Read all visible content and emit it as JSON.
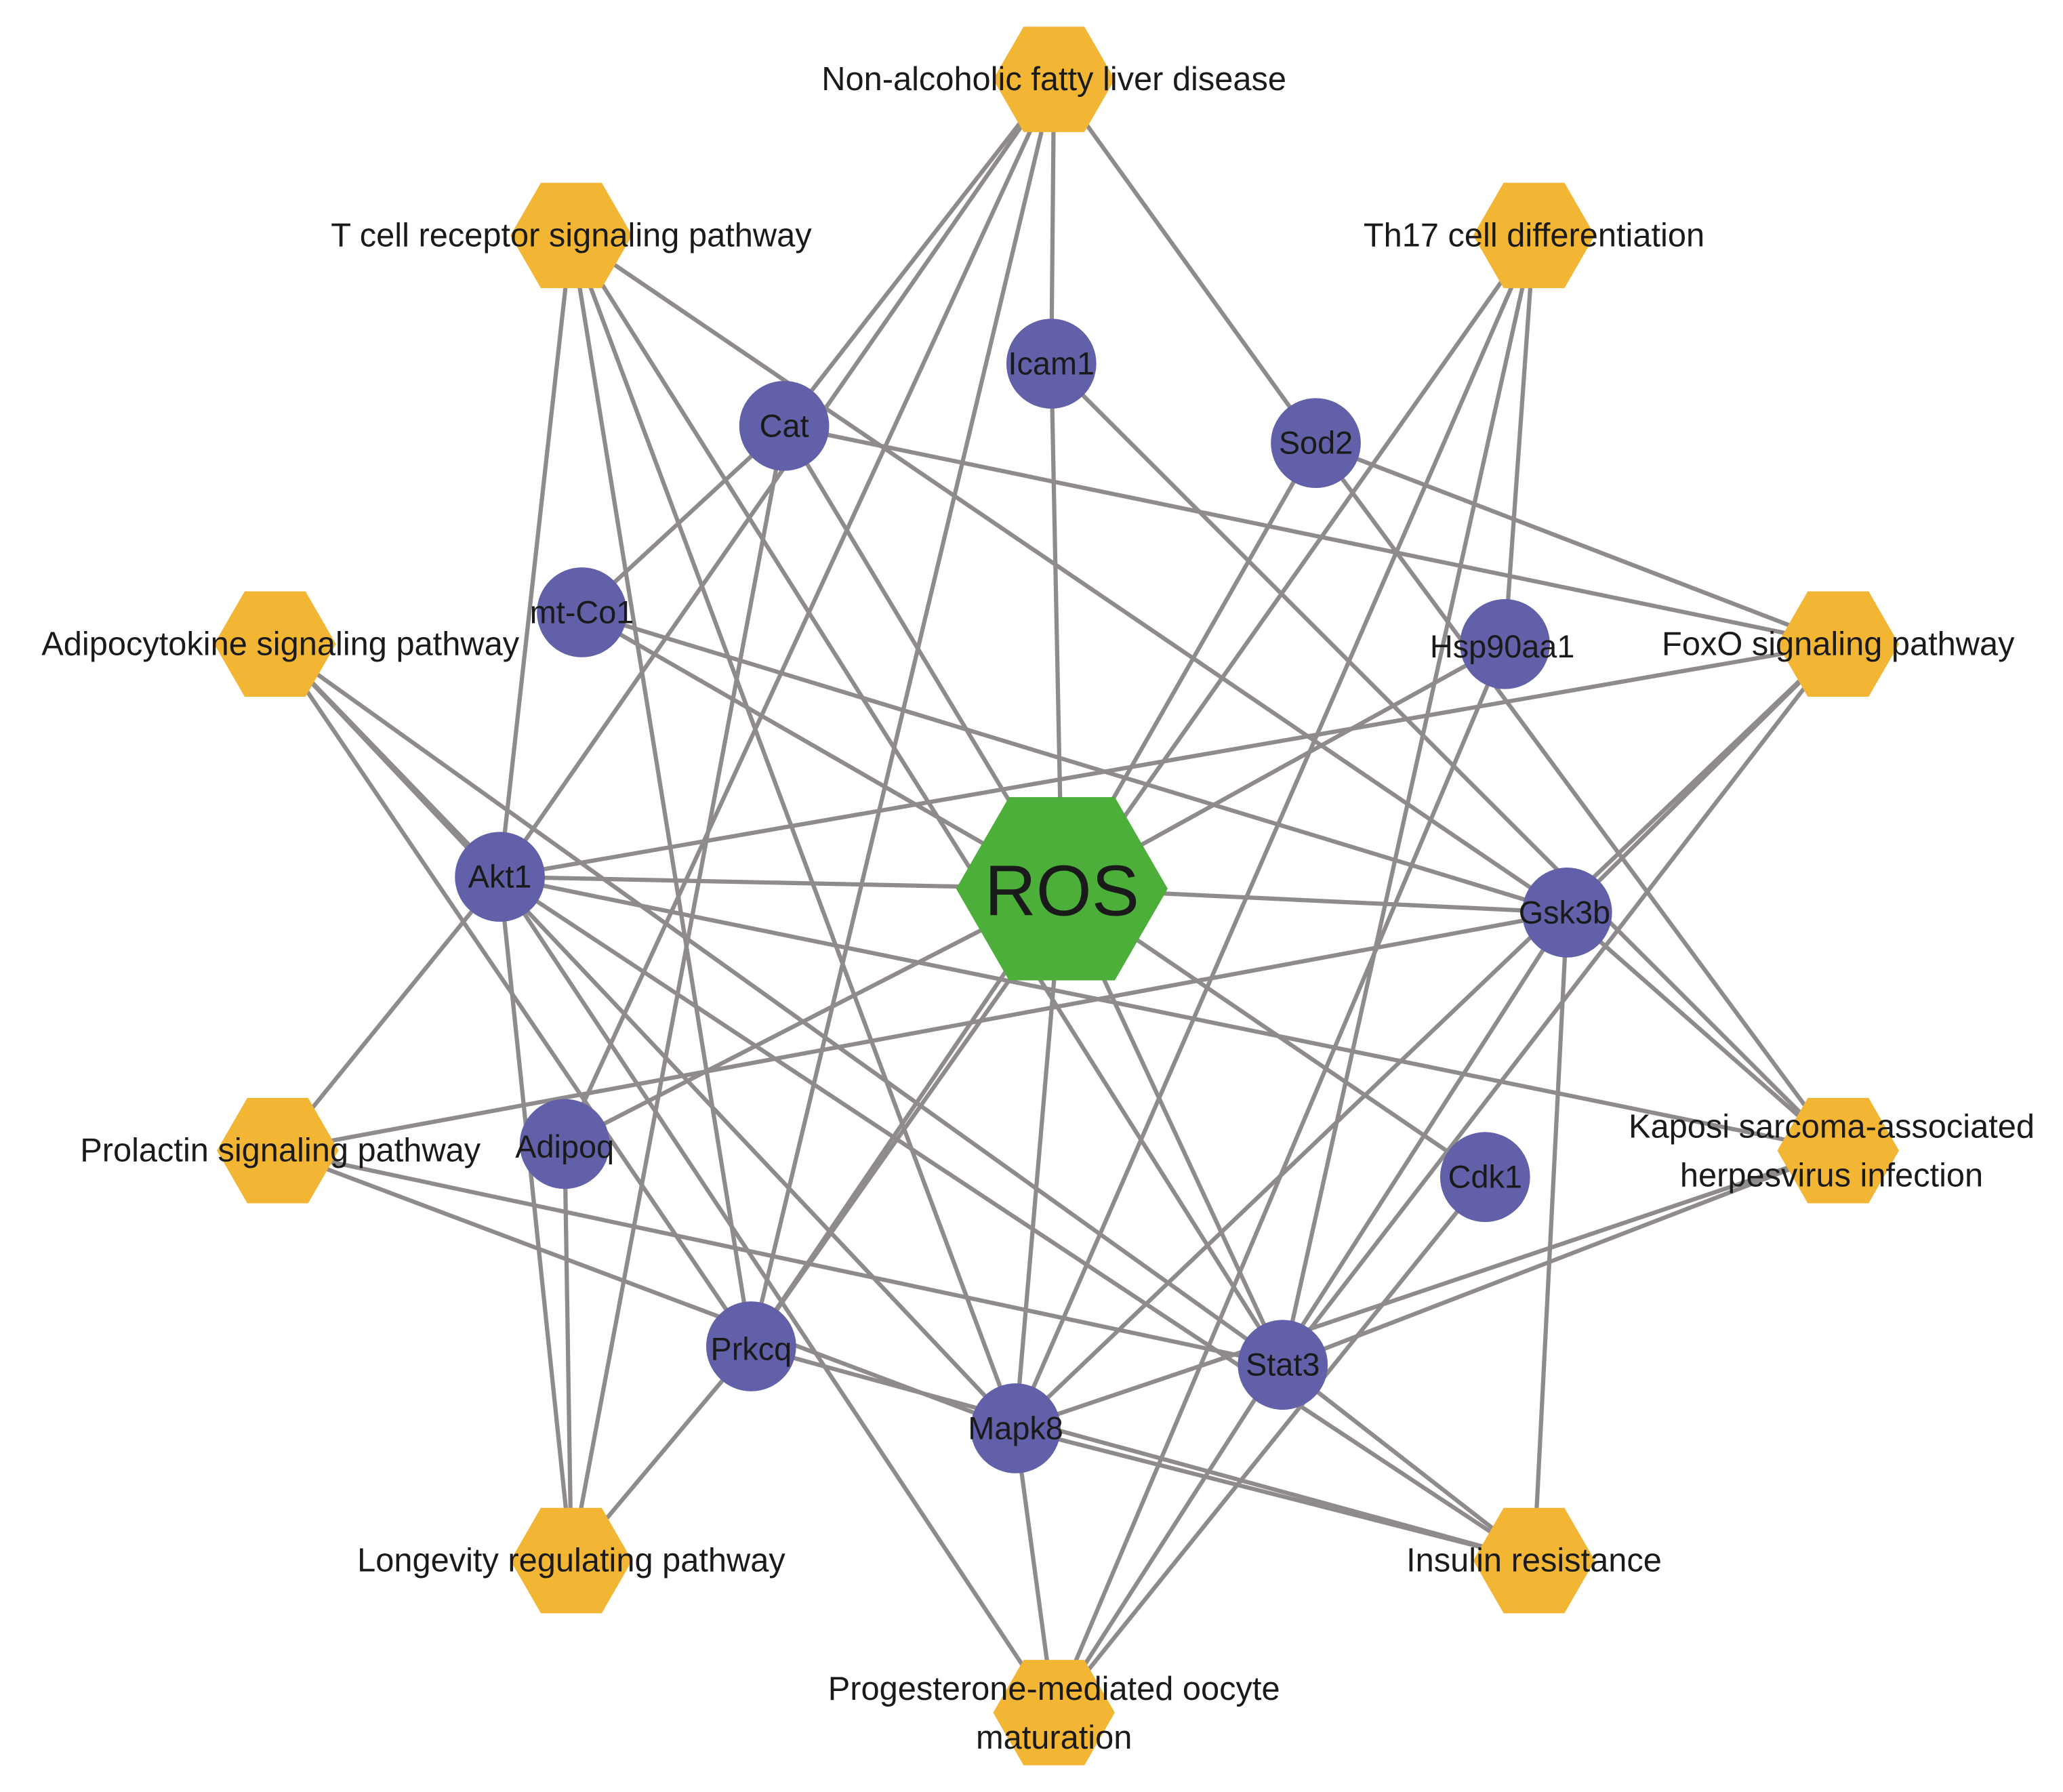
{
  "center": {
    "id": "ROS",
    "label": "ROS",
    "color": "#4caf3a"
  },
  "pathway_color": "#f2b634",
  "gene_color": "#6160a8",
  "edge_color": "#8f8b8c",
  "pathways": [
    {
      "id": "nafld",
      "label": "Non-alcoholic fatty liver disease"
    },
    {
      "id": "tcell",
      "label": "T cell receptor signaling pathway"
    },
    {
      "id": "th17",
      "label": "Th17 cell differentiation"
    },
    {
      "id": "adipo",
      "label": "Adipocytokine signaling pathway"
    },
    {
      "id": "foxo",
      "label": "FoxO signaling pathway"
    },
    {
      "id": "prolactin",
      "label": "Prolactin signaling pathway"
    },
    {
      "id": "kaposi",
      "label": "Kaposi sarcoma-associated",
      "label2": "herpesvirus infection"
    },
    {
      "id": "longevity",
      "label": "Longevity regulating pathway"
    },
    {
      "id": "insulin",
      "label": "Insulin resistance"
    },
    {
      "id": "progesterone",
      "label": "Progesterone-mediated oocyte",
      "label2": "maturation"
    }
  ],
  "genes": [
    {
      "id": "Icam1",
      "label": "Icam1"
    },
    {
      "id": "Cat",
      "label": "Cat"
    },
    {
      "id": "Sod2",
      "label": "Sod2"
    },
    {
      "id": "mtCo1",
      "label": "mt-Co1"
    },
    {
      "id": "Hsp90aa1",
      "label": "Hsp90aa1"
    },
    {
      "id": "Akt1",
      "label": "Akt1"
    },
    {
      "id": "Gsk3b",
      "label": "Gsk3b"
    },
    {
      "id": "Adipoq",
      "label": "Adipoq"
    },
    {
      "id": "Cdk1",
      "label": "Cdk1"
    },
    {
      "id": "Prkcq",
      "label": "Prkcq"
    },
    {
      "id": "Stat3",
      "label": "Stat3"
    },
    {
      "id": "Mapk8",
      "label": "Mapk8"
    }
  ],
  "edges": [
    [
      "ROS",
      "Icam1"
    ],
    [
      "ROS",
      "Cat"
    ],
    [
      "ROS",
      "Sod2"
    ],
    [
      "ROS",
      "mtCo1"
    ],
    [
      "ROS",
      "Hsp90aa1"
    ],
    [
      "ROS",
      "Akt1"
    ],
    [
      "ROS",
      "Gsk3b"
    ],
    [
      "ROS",
      "Adipoq"
    ],
    [
      "ROS",
      "Cdk1"
    ],
    [
      "ROS",
      "Prkcq"
    ],
    [
      "ROS",
      "Stat3"
    ],
    [
      "ROS",
      "Mapk8"
    ],
    [
      "nafld",
      "Icam1"
    ],
    [
      "nafld",
      "Sod2"
    ],
    [
      "nafld",
      "Cat"
    ],
    [
      "nafld",
      "Akt1"
    ],
    [
      "nafld",
      "Adipoq"
    ],
    [
      "nafld",
      "Prkcq"
    ],
    [
      "tcell",
      "Gsk3b"
    ],
    [
      "tcell",
      "Akt1"
    ],
    [
      "tcell",
      "Prkcq"
    ],
    [
      "tcell",
      "Mapk8"
    ],
    [
      "tcell",
      "Stat3"
    ],
    [
      "th17",
      "Hsp90aa1"
    ],
    [
      "th17",
      "Stat3"
    ],
    [
      "th17",
      "Mapk8"
    ],
    [
      "th17",
      "Prkcq"
    ],
    [
      "adipo",
      "Akt1"
    ],
    [
      "adipo",
      "Mapk8"
    ],
    [
      "adipo",
      "Stat3"
    ],
    [
      "adipo",
      "Prkcq"
    ],
    [
      "foxo",
      "Cat"
    ],
    [
      "foxo",
      "Sod2"
    ],
    [
      "foxo",
      "Akt1"
    ],
    [
      "foxo",
      "Gsk3b"
    ],
    [
      "foxo",
      "Stat3"
    ],
    [
      "foxo",
      "Mapk8"
    ],
    [
      "prolactin",
      "Akt1"
    ],
    [
      "prolactin",
      "Gsk3b"
    ],
    [
      "prolactin",
      "Stat3"
    ],
    [
      "prolactin",
      "Mapk8"
    ],
    [
      "kaposi",
      "Akt1"
    ],
    [
      "kaposi",
      "Gsk3b"
    ],
    [
      "kaposi",
      "Sod2"
    ],
    [
      "kaposi",
      "Icam1"
    ],
    [
      "kaposi",
      "Stat3"
    ],
    [
      "kaposi",
      "Mapk8"
    ],
    [
      "longevity",
      "Akt1"
    ],
    [
      "longevity",
      "Adipoq"
    ],
    [
      "longevity",
      "Cat"
    ],
    [
      "longevity",
      "Prkcq"
    ],
    [
      "insulin",
      "Gsk3b"
    ],
    [
      "insulin",
      "Stat3"
    ],
    [
      "insulin",
      "Mapk8"
    ],
    [
      "insulin",
      "Akt1"
    ],
    [
      "insulin",
      "Prkcq"
    ],
    [
      "progesterone",
      "Mapk8"
    ],
    [
      "progesterone",
      "Akt1"
    ],
    [
      "progesterone",
      "Cdk1"
    ],
    [
      "progesterone",
      "Hsp90aa1"
    ],
    [
      "progesterone",
      "Gsk3b"
    ],
    [
      "Cat",
      "mtCo1"
    ],
    [
      "mtCo1",
      "Gsk3b"
    ]
  ]
}
